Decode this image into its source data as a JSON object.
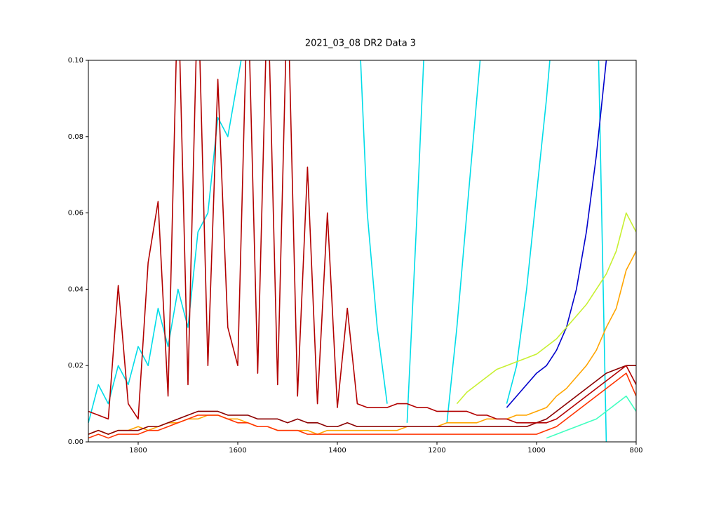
{
  "chart_data": {
    "type": "line",
    "title": "2021_03_08 DR2 Data 3",
    "x": [
      1900,
      1880,
      1860,
      1840,
      1820,
      1800,
      1780,
      1760,
      1740,
      1720,
      1700,
      1680,
      1660,
      1640,
      1620,
      1600,
      1580,
      1560,
      1540,
      1520,
      1500,
      1480,
      1460,
      1440,
      1420,
      1400,
      1380,
      1360,
      1340,
      1320,
      1300,
      1280,
      1260,
      1240,
      1220,
      1200,
      1180,
      1160,
      1140,
      1120,
      1100,
      1080,
      1060,
      1040,
      1020,
      1000,
      980,
      960,
      940,
      920,
      900,
      880,
      860,
      840,
      820,
      800
    ],
    "xlim": [
      1900,
      800
    ],
    "xticks": [
      1800,
      1600,
      1400,
      1200,
      1000,
      800
    ],
    "ylim": [
      0,
      0.1
    ],
    "yticks": [
      {
        "value": 0,
        "label": "0.00"
      },
      {
        "value": 0.02,
        "label": "0.02"
      },
      {
        "value": 0.04,
        "label": "0.04"
      },
      {
        "value": 0.06,
        "label": "0.06"
      },
      {
        "value": 0.08,
        "label": "0.08"
      },
      {
        "value": 0.1,
        "label": "0.10"
      }
    ],
    "series": [
      {
        "color": "#00dce8",
        "values": [
          0.005,
          0.015,
          0.01,
          0.02,
          0.015,
          0.025,
          0.02,
          0.035,
          0.025,
          0.04,
          0.03,
          0.055,
          0.06,
          0.085,
          0.08,
          0.095,
          0.11,
          0.12,
          null,
          null,
          null,
          null,
          null,
          null,
          null,
          null,
          null,
          null,
          null,
          null,
          null,
          null,
          null,
          null,
          null,
          null,
          null,
          null,
          null,
          null,
          null,
          null,
          null,
          null,
          null,
          null,
          null,
          null,
          null,
          null,
          null,
          null,
          null,
          null,
          null,
          null
        ]
      },
      {
        "color": "#00dce8",
        "values": [
          null,
          null,
          null,
          null,
          null,
          null,
          null,
          null,
          null,
          null,
          null,
          null,
          null,
          null,
          null,
          null,
          null,
          null,
          null,
          null,
          null,
          null,
          null,
          null,
          null,
          null,
          null,
          0.12,
          0.06,
          0.03,
          0.01,
          null,
          null,
          null,
          null,
          null,
          null,
          null,
          null,
          null,
          null,
          null,
          null,
          null,
          null,
          null,
          null,
          null,
          null,
          null,
          null,
          null,
          null,
          null,
          null,
          null
        ]
      },
      {
        "color": "#00dce8",
        "values": [
          null,
          null,
          null,
          null,
          null,
          null,
          null,
          null,
          null,
          null,
          null,
          null,
          null,
          null,
          null,
          null,
          null,
          null,
          null,
          null,
          null,
          null,
          null,
          null,
          null,
          null,
          null,
          null,
          null,
          null,
          null,
          null,
          0.005,
          0.06,
          0.12,
          null,
          null,
          null,
          null,
          null,
          null,
          null,
          null,
          null,
          null,
          null,
          null,
          null,
          null,
          null,
          null,
          null,
          null,
          null,
          null,
          null
        ]
      },
      {
        "color": "#00dce8",
        "values": [
          null,
          null,
          null,
          null,
          null,
          null,
          null,
          null,
          null,
          null,
          null,
          null,
          null,
          null,
          null,
          null,
          null,
          null,
          null,
          null,
          null,
          null,
          null,
          null,
          null,
          null,
          null,
          null,
          null,
          null,
          null,
          null,
          null,
          null,
          null,
          null,
          0.005,
          0.03,
          0.06,
          0.09,
          0.12,
          null,
          null,
          null,
          null,
          null,
          null,
          null,
          null,
          null,
          null,
          null,
          null,
          null,
          null,
          null
        ]
      },
      {
        "color": "#00dce8",
        "values": [
          null,
          null,
          null,
          null,
          null,
          null,
          null,
          null,
          null,
          null,
          null,
          null,
          null,
          null,
          null,
          null,
          null,
          null,
          null,
          null,
          null,
          null,
          null,
          null,
          null,
          null,
          null,
          null,
          null,
          null,
          null,
          null,
          null,
          null,
          null,
          null,
          null,
          null,
          null,
          null,
          null,
          null,
          0.01,
          0.02,
          0.04,
          0.065,
          0.09,
          0.12,
          null,
          null,
          null,
          null,
          null,
          null,
          null,
          null
        ]
      },
      {
        "color": "#00dce8",
        "values": [
          null,
          null,
          null,
          null,
          null,
          null,
          null,
          null,
          null,
          null,
          null,
          null,
          null,
          null,
          null,
          null,
          null,
          null,
          null,
          null,
          null,
          null,
          null,
          null,
          null,
          null,
          null,
          null,
          null,
          null,
          null,
          null,
          null,
          null,
          null,
          null,
          null,
          null,
          null,
          null,
          null,
          null,
          null,
          null,
          null,
          null,
          null,
          null,
          null,
          null,
          null,
          0.13,
          0.0,
          null,
          null,
          null
        ]
      },
      {
        "color": "#0000cc",
        "values": [
          null,
          null,
          null,
          null,
          null,
          null,
          null,
          null,
          null,
          null,
          null,
          null,
          null,
          null,
          null,
          null,
          null,
          null,
          null,
          null,
          null,
          null,
          null,
          null,
          null,
          null,
          null,
          null,
          null,
          null,
          null,
          null,
          null,
          null,
          null,
          null,
          null,
          null,
          null,
          null,
          null,
          null,
          0.009,
          0.012,
          0.015,
          0.018,
          0.02,
          0.024,
          0.03,
          0.04,
          0.055,
          0.075,
          0.1,
          0.12,
          null,
          null
        ]
      },
      {
        "color": "#c8f032",
        "values": [
          null,
          null,
          null,
          null,
          null,
          null,
          null,
          null,
          null,
          null,
          null,
          null,
          null,
          null,
          null,
          null,
          null,
          null,
          null,
          null,
          null,
          null,
          null,
          null,
          null,
          null,
          null,
          null,
          null,
          null,
          null,
          null,
          null,
          null,
          null,
          null,
          null,
          0.01,
          0.013,
          0.015,
          0.017,
          0.019,
          0.02,
          0.021,
          0.022,
          0.023,
          0.025,
          0.027,
          0.03,
          0.033,
          0.036,
          0.04,
          0.044,
          0.05,
          0.06,
          0.055
        ]
      },
      {
        "color": "#40ffc0",
        "values": [
          null,
          null,
          null,
          null,
          null,
          null,
          null,
          null,
          null,
          null,
          null,
          null,
          null,
          null,
          null,
          null,
          null,
          null,
          null,
          null,
          null,
          null,
          null,
          null,
          null,
          null,
          null,
          null,
          null,
          null,
          null,
          null,
          null,
          null,
          null,
          null,
          null,
          null,
          null,
          null,
          null,
          null,
          null,
          null,
          null,
          null,
          0.001,
          0.002,
          0.003,
          0.004,
          0.005,
          0.006,
          0.008,
          0.01,
          0.012,
          0.008
        ]
      },
      {
        "color": "#ffa500",
        "values": [
          0.002,
          0.003,
          0.002,
          0.003,
          0.003,
          0.004,
          0.003,
          0.004,
          0.005,
          0.005,
          0.006,
          0.006,
          0.007,
          0.007,
          0.006,
          0.006,
          0.005,
          0.004,
          0.004,
          0.003,
          0.003,
          0.003,
          0.003,
          0.002,
          0.003,
          0.003,
          0.003,
          0.003,
          0.003,
          0.003,
          0.003,
          0.003,
          0.004,
          0.004,
          0.004,
          0.004,
          0.005,
          0.005,
          0.005,
          0.005,
          0.006,
          0.006,
          0.006,
          0.007,
          0.007,
          0.008,
          0.009,
          0.012,
          0.014,
          0.017,
          0.02,
          0.024,
          0.03,
          0.035,
          0.045,
          0.05
        ]
      },
      {
        "color": "#ff3300",
        "values": [
          0.001,
          0.002,
          0.001,
          0.002,
          0.002,
          0.002,
          0.003,
          0.003,
          0.004,
          0.005,
          0.006,
          0.007,
          0.007,
          0.007,
          0.006,
          0.005,
          0.005,
          0.004,
          0.004,
          0.003,
          0.003,
          0.003,
          0.002,
          0.002,
          0.002,
          0.002,
          0.002,
          0.002,
          0.002,
          0.002,
          0.002,
          0.002,
          0.002,
          0.002,
          0.002,
          0.002,
          0.002,
          0.002,
          0.002,
          0.002,
          0.002,
          0.002,
          0.002,
          0.002,
          0.002,
          0.002,
          0.003,
          0.004,
          0.006,
          0.008,
          0.01,
          0.012,
          0.014,
          0.016,
          0.018,
          0.012
        ]
      },
      {
        "color": "#8b0000",
        "values": [
          0.002,
          0.003,
          0.002,
          0.003,
          0.003,
          0.003,
          0.004,
          0.004,
          0.005,
          0.006,
          0.007,
          0.008,
          0.008,
          0.008,
          0.007,
          0.007,
          0.007,
          0.006,
          0.006,
          0.006,
          0.005,
          0.006,
          0.005,
          0.005,
          0.004,
          0.004,
          0.005,
          0.004,
          0.004,
          0.004,
          0.004,
          0.004,
          0.004,
          0.004,
          0.004,
          0.004,
          0.004,
          0.004,
          0.004,
          0.004,
          0.004,
          0.004,
          0.004,
          0.004,
          0.004,
          0.005,
          0.006,
          0.008,
          0.01,
          0.012,
          0.014,
          0.016,
          0.018,
          0.019,
          0.02,
          0.02
        ]
      },
      {
        "color": "#b20000",
        "values": [
          0.008,
          0.007,
          0.006,
          0.041,
          0.01,
          0.006,
          0.047,
          0.063,
          0.012,
          0.12,
          0.015,
          0.12,
          0.02,
          0.095,
          0.03,
          0.02,
          0.12,
          0.018,
          0.12,
          0.015,
          0.12,
          0.012,
          0.072,
          0.01,
          0.06,
          0.009,
          0.035,
          0.01,
          0.009,
          0.009,
          0.009,
          0.01,
          0.01,
          0.009,
          0.009,
          0.008,
          0.008,
          0.008,
          0.008,
          0.007,
          0.007,
          0.006,
          0.006,
          0.005,
          0.005,
          0.005,
          0.005,
          0.006,
          0.008,
          0.01,
          0.012,
          0.014,
          0.016,
          0.018,
          0.02,
          0.015
        ]
      }
    ]
  }
}
